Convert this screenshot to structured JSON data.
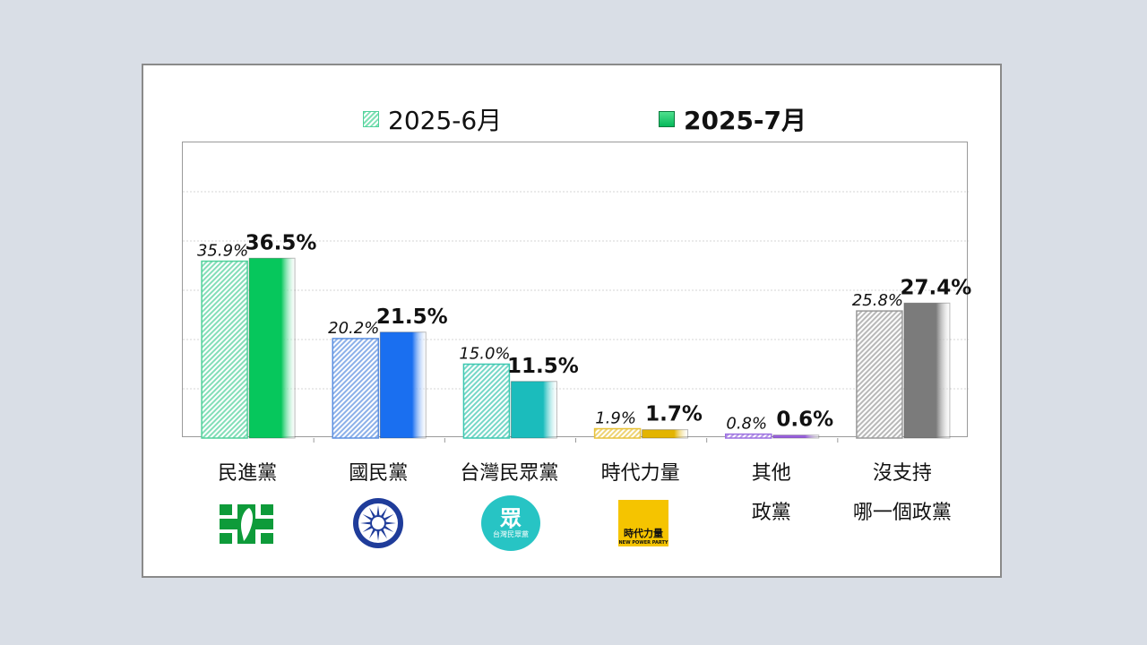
{
  "chart_data": {
    "type": "bar",
    "categories": [
      "民進黨",
      "國民黨",
      "台灣民眾黨",
      "時代力量",
      "其他 政黨",
      "沒支持 哪一個政黨"
    ],
    "category_lines": [
      [
        "民進黨"
      ],
      [
        "國民黨"
      ],
      [
        "台灣民眾黨"
      ],
      [
        "時代力量"
      ],
      [
        "其他",
        "政黨"
      ],
      [
        "沒支持",
        "哪一個政黨"
      ]
    ],
    "series": [
      {
        "name": "2025-6月",
        "values": [
          35.9,
          20.2,
          15.0,
          1.9,
          0.8,
          25.8
        ],
        "labels": [
          "35.9%",
          "20.2%",
          "15.0%",
          "1.9%",
          "0.8%",
          "25.8%"
        ]
      },
      {
        "name": "2025-7月",
        "values": [
          36.5,
          21.5,
          11.5,
          1.7,
          0.6,
          27.4
        ],
        "labels": [
          "36.5%",
          "21.5%",
          "11.5%",
          "1.7%",
          "0.6%",
          "27.4%"
        ]
      }
    ],
    "ylim": [
      0,
      60
    ],
    "grid": true,
    "legend": "top",
    "colors": {
      "june": [
        "#4fd19a",
        "#5b8fe0",
        "#3bc7b0",
        "#e8c23a",
        "#9b6fe0",
        "#9a9a9a"
      ],
      "july": [
        "#06c75c",
        "#1a6ff0",
        "#1bbcbc",
        "#e3b400",
        "#9a5fe0",
        "#7b7b7b"
      ]
    }
  },
  "logos": {
    "dpp": {
      "name": "dpp-logo-icon"
    },
    "kmt": {
      "name": "kmt-logo-icon"
    },
    "tpp": {
      "name": "tpp-logo-icon",
      "text": "眾",
      "subtitle": "台灣民眾黨",
      "color": "#27c4c4"
    },
    "npp": {
      "name": "npp-logo-icon",
      "text": "時代力量",
      "subtitle": "NEW POWER PARTY",
      "color": "#f5c400"
    }
  }
}
